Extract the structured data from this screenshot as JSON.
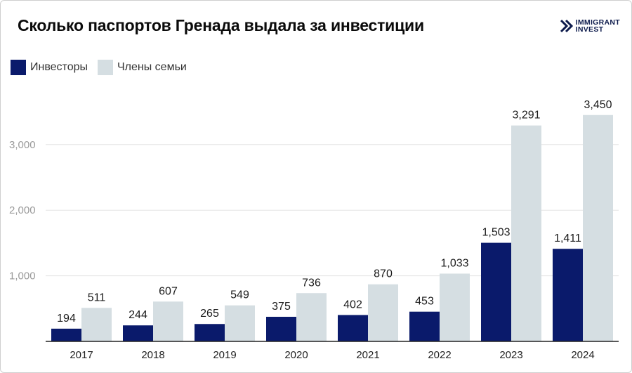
{
  "title": "Сколько паспортов Гренада выдала за инвестиции",
  "logo": {
    "line1": "IMMIGRANT",
    "line2": "INVEST"
  },
  "colors": {
    "investors": "#0a1a6b",
    "family": "#d5dee2",
    "grid": "#e3e3e3",
    "axis": "#222222"
  },
  "chart_data": {
    "type": "bar",
    "categories": [
      "2017",
      "2018",
      "2019",
      "2020",
      "2021",
      "2022",
      "2023",
      "2024"
    ],
    "series": [
      {
        "name": "Инвесторы",
        "values": [
          194,
          244,
          265,
          375,
          402,
          453,
          1503,
          1411
        ],
        "labels": [
          "194",
          "244",
          "265",
          "375",
          "402",
          "453",
          "1,503",
          "1,411"
        ]
      },
      {
        "name": "Члены семьи",
        "values": [
          511,
          607,
          549,
          736,
          870,
          1033,
          3291,
          3450
        ],
        "labels": [
          "511",
          "607",
          "549",
          "736",
          "870",
          "1,033",
          "3,291",
          "3,450"
        ]
      }
    ],
    "yticks": [
      1000,
      2000,
      3000
    ],
    "ytick_labels": [
      "1,000",
      "2,000",
      "3,000"
    ],
    "ylim": [
      0,
      3750
    ],
    "grid": true,
    "legend": "top-left"
  }
}
